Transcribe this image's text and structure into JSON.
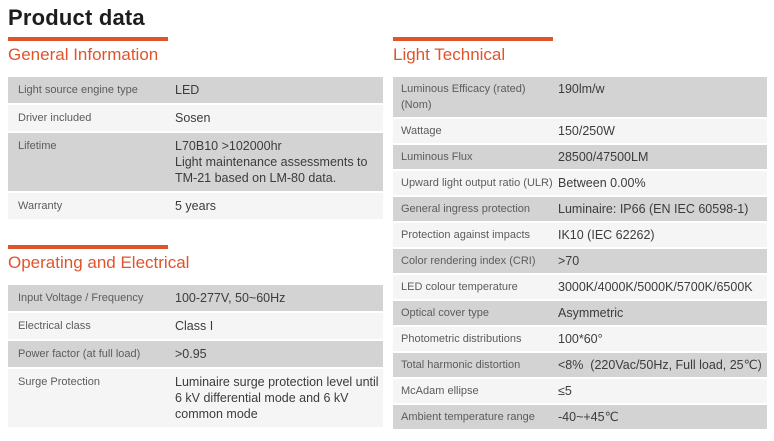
{
  "page": {
    "title": "Product data"
  },
  "theme": {
    "accent_orange": "#E0542B",
    "title_color": "#1d1d1d",
    "label_color": "#5c5c5c",
    "value_color": "#3c3c3c",
    "row_dark": "#d3d3d3",
    "row_light": "#f5f5f5"
  },
  "sections": [
    {
      "id": "general-information",
      "heading": "General Information",
      "rows": [
        {
          "label": "Light source engine type",
          "value": "LED"
        },
        {
          "label": "Driver included",
          "value": "Sosen"
        },
        {
          "label": "Lifetime",
          "value": "L70B10 >102000hr\nLight maintenance assessments to\nTM-21 based on LM-80 data."
        },
        {
          "label": "Warranty",
          "value": "5 years"
        }
      ]
    },
    {
      "id": "operating-and-electrical",
      "heading": "Operating and Electrical",
      "rows": [
        {
          "label": "Input Voltage / Frequency",
          "value": "100-277V, 50~60Hz"
        },
        {
          "label": "Electrical class",
          "value": "Class I"
        },
        {
          "label": "Power factor (at full load)",
          "value": ">0.95"
        },
        {
          "label": "Surge Protection",
          "value": "Luminaire surge protection level until\n6 kV differential mode and 6 kV\ncommon mode"
        }
      ]
    },
    {
      "id": "light-technical",
      "heading": "Light Technical",
      "rows": [
        {
          "label": "Luminous Efficacy (rated) (Nom)",
          "value": "190lm/w"
        },
        {
          "label": "Wattage",
          "value": "150/250W"
        },
        {
          "label": "Luminous Flux",
          "value": "28500/47500LM"
        },
        {
          "label": "Upward light output ratio (ULR)",
          "value": "Between 0.00%"
        },
        {
          "label": "General ingress protection",
          "value": "Luminaire: IP66 (EN IEC 60598-1)"
        },
        {
          "label": "Protection against impacts",
          "value": "IK10 (IEC 62262)"
        },
        {
          "label": "Color rendering index (CRI)",
          "value": ">70"
        },
        {
          "label": "LED colour temperature",
          "value": "3000K/4000K/5000K/5700K/6500K"
        },
        {
          "label": "Optical cover type",
          "value": "Asymmetric"
        },
        {
          "label": "Photometric distributions",
          "value": "100*60°"
        },
        {
          "label": "Total harmonic distortion",
          "value": "<8%  (220Vac/50Hz, Full load, 25℃)"
        },
        {
          "label": "McAdam ellipse",
          "value": "≤5"
        },
        {
          "label": "Ambient temperature range",
          "value": "-40~+45℃"
        }
      ]
    }
  ]
}
